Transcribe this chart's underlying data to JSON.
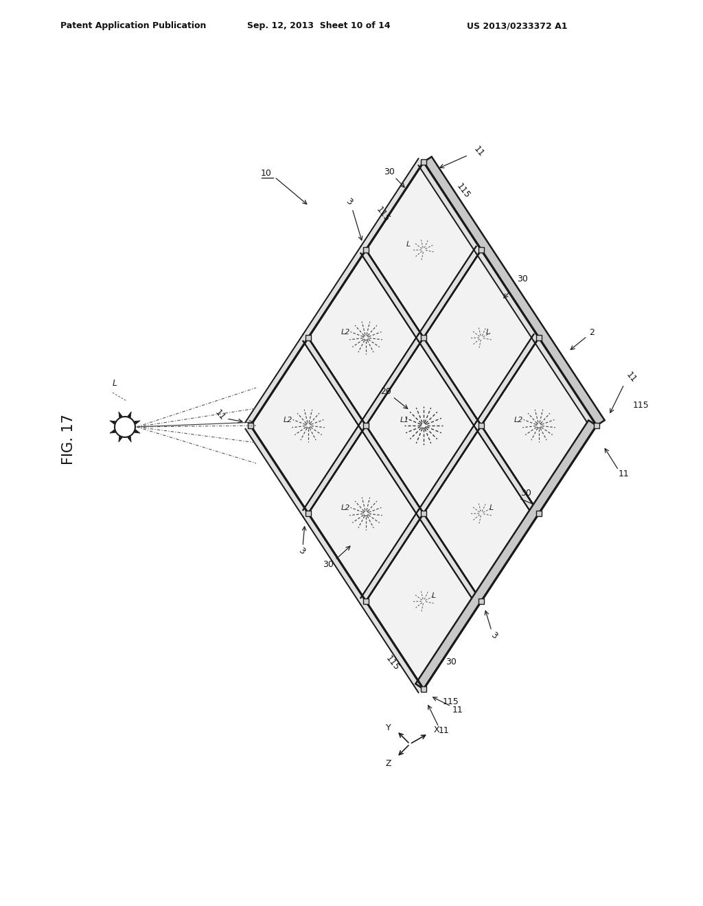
{
  "header_left": "Patent Application Publication",
  "header_mid": "Sep. 12, 2013  Sheet 10 of 14",
  "header_right": "US 2013/0233372 A1",
  "fig_label": "FIG. 17",
  "bg_color": "#ffffff",
  "panel_fill": "#f2f2f2",
  "frame_fill": "#e0e0e0",
  "frame_fill2": "#c8c8c8",
  "line_color": "#1a1a1a",
  "frame_lw": 1.8,
  "cell_lw": 1.4
}
